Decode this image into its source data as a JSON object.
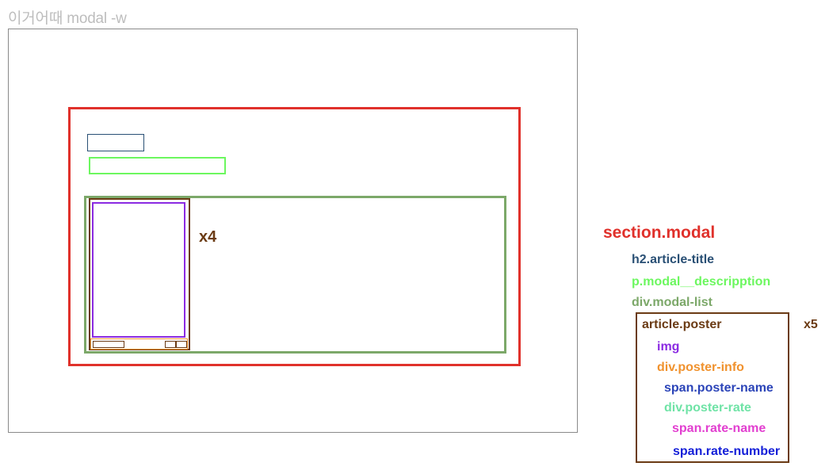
{
  "page_title": "이거어때 modal -w",
  "wireframe": {
    "multiplier": "x4"
  },
  "legend": {
    "section": {
      "label": "section.modal",
      "color": "#e0312b"
    },
    "title": {
      "label": "h2.article-title",
      "color": "#2a5075"
    },
    "description": {
      "label": "p.modal__descripption",
      "color": "#6cf75f"
    },
    "list": {
      "label": "div.modal-list",
      "color": "#7ca869"
    },
    "poster": {
      "label": "article.poster",
      "color": "#6b3b14",
      "multiplier": "x5"
    },
    "img": {
      "label": "img",
      "color": "#8b2be2"
    },
    "poster_info": {
      "label": "div.poster-info",
      "color": "#f0922e"
    },
    "poster_name": {
      "label": "span.poster-name",
      "color": "#2b44b8"
    },
    "poster_rate": {
      "label": "div.poster-rate",
      "color": "#6fe3a6"
    },
    "rate_name": {
      "label": "span.rate-name",
      "color": "#e23fd0"
    },
    "rate_number": {
      "label": "span.rate-number",
      "color": "#1520d8"
    }
  }
}
